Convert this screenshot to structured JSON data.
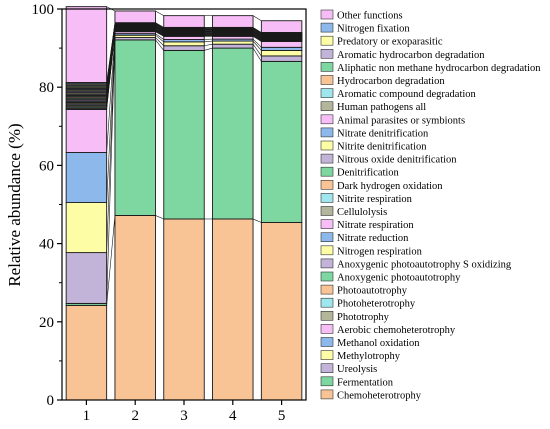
{
  "chart_data": {
    "type": "bar",
    "stacked": true,
    "title": "",
    "xlabel": "",
    "ylabel": "Relative abundance (%)",
    "ylim": [
      0,
      100
    ],
    "yticks": [
      0,
      20,
      40,
      60,
      80,
      100
    ],
    "categories": [
      "1",
      "2",
      "3",
      "4",
      "5"
    ],
    "legend_position": "right",
    "series": [
      {
        "name": "Chemoheterotrophy",
        "color": "#F8C495",
        "values": [
          24.2,
          47.2,
          46.3,
          46.3,
          45.4
        ]
      },
      {
        "name": "Fermentation",
        "color": "#7ED6A0",
        "values": [
          0.5,
          44.9,
          43.1,
          43.7,
          41.2
        ]
      },
      {
        "name": "Ureolysis",
        "color": "#C2B4D8",
        "values": [
          13.0,
          0.6,
          1.2,
          1.0,
          1.4
        ]
      },
      {
        "name": "Methylotrophy",
        "color": "#FDFDA6",
        "values": [
          12.8,
          0.6,
          1.0,
          0.8,
          1.4
        ]
      },
      {
        "name": "Methanol oxidation",
        "color": "#8DB8EC",
        "values": [
          12.8,
          0.4,
          0.6,
          0.5,
          0.8
        ]
      },
      {
        "name": "Aerobic chemoheterotrophy",
        "color": "#F6BDF6",
        "values": [
          11.0,
          0.5,
          0.8,
          0.7,
          1.5
        ]
      },
      {
        "name": "Phototrophy",
        "color": "#B3B69A",
        "values": [
          0.3,
          0.1,
          0.1,
          0.1,
          0.1
        ]
      },
      {
        "name": "Photoheterotrophy",
        "color": "#9FE6EE",
        "values": [
          0.3,
          0.1,
          0.1,
          0.1,
          0.1
        ]
      },
      {
        "name": "Photoautotrophy",
        "color": "#F8C495",
        "values": [
          0.3,
          0.1,
          0.1,
          0.1,
          0.1
        ]
      },
      {
        "name": "Anoxygenic photoautotrophy",
        "color": "#7ED6A0",
        "values": [
          0.3,
          0.1,
          0.1,
          0.1,
          0.1
        ]
      },
      {
        "name": "Anoxygenic photoautotrophy S oxidizing",
        "color": "#C2B4D8",
        "values": [
          0.3,
          0.1,
          0.1,
          0.1,
          0.1
        ]
      },
      {
        "name": "Nitrogen respiration",
        "color": "#FDFDA6",
        "values": [
          0.3,
          0.1,
          0.1,
          0.1,
          0.1
        ]
      },
      {
        "name": "Nitrate reduction",
        "color": "#8DB8EC",
        "values": [
          0.3,
          0.1,
          0.1,
          0.1,
          0.1
        ]
      },
      {
        "name": "Nitrate respiration",
        "color": "#F6BDF6",
        "values": [
          0.3,
          0.1,
          0.1,
          0.1,
          0.1
        ]
      },
      {
        "name": "Cellulolysis",
        "color": "#B3B69A",
        "values": [
          0.3,
          0.1,
          0.1,
          0.1,
          0.1
        ]
      },
      {
        "name": "Nitrite respiration",
        "color": "#9FE6EE",
        "values": [
          0.3,
          0.1,
          0.1,
          0.1,
          0.1
        ]
      },
      {
        "name": "Dark hydrogen oxidation",
        "color": "#F8C495",
        "values": [
          0.3,
          0.1,
          0.1,
          0.1,
          0.1
        ]
      },
      {
        "name": "Denitrification",
        "color": "#7ED6A0",
        "values": [
          0.3,
          0.1,
          0.1,
          0.1,
          0.1
        ]
      },
      {
        "name": "Nitrous oxide denitrification",
        "color": "#C2B4D8",
        "values": [
          0.3,
          0.1,
          0.1,
          0.1,
          0.1
        ]
      },
      {
        "name": "Nitrite denitrification",
        "color": "#FDFDA6",
        "values": [
          0.3,
          0.1,
          0.1,
          0.1,
          0.1
        ]
      },
      {
        "name": "Nitrate denitrification",
        "color": "#8DB8EC",
        "values": [
          0.3,
          0.1,
          0.1,
          0.1,
          0.1
        ]
      },
      {
        "name": "Animal parasites or symbionts",
        "color": "#F6BDF6",
        "values": [
          0.3,
          0.1,
          0.1,
          0.1,
          0.1
        ]
      },
      {
        "name": "Human pathogens all",
        "color": "#B3B69A",
        "values": [
          0.3,
          0.1,
          0.1,
          0.1,
          0.1
        ]
      },
      {
        "name": "Aromatic compound degradation",
        "color": "#9FE6EE",
        "values": [
          0.3,
          0.1,
          0.1,
          0.1,
          0.1
        ]
      },
      {
        "name": "Hydrocarbon degradation",
        "color": "#F8C495",
        "values": [
          0.3,
          0.1,
          0.1,
          0.1,
          0.1
        ]
      },
      {
        "name": "Aliphatic non methane hydrocarbon degradation",
        "color": "#7ED6A0",
        "values": [
          0.3,
          0.1,
          0.1,
          0.1,
          0.1
        ]
      },
      {
        "name": "Aromatic hydrocarbon degradation",
        "color": "#C2B4D8",
        "values": [
          0.3,
          0.1,
          0.1,
          0.1,
          0.1
        ]
      },
      {
        "name": "Predatory or exoparasitic",
        "color": "#FDFDA6",
        "values": [
          0.3,
          0.1,
          0.1,
          0.1,
          0.1
        ]
      },
      {
        "name": "Nitrogen fixation",
        "color": "#8DB8EC",
        "values": [
          0.3,
          0.1,
          0.1,
          0.1,
          0.1
        ]
      },
      {
        "name": "Other functions",
        "color": "#F6BDF6",
        "values": [
          19.4,
          3.0,
          3.0,
          3.0,
          3.0
        ]
      }
    ]
  }
}
